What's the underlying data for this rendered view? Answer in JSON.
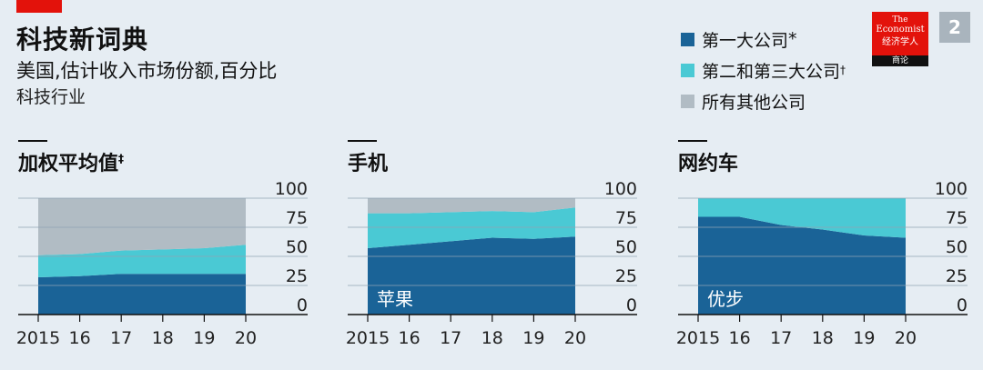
{
  "header": {
    "title": "科技新词典",
    "subtitle": "美国,估计收入市场份额,百分比",
    "subtitle2": "科技行业"
  },
  "legend": [
    {
      "label": "第一大公司",
      "mark": "*",
      "color": "#1a6397"
    },
    {
      "label": "第二和第三大公司",
      "mark": "†",
      "color": "#4ac9d4"
    },
    {
      "label": "所有其他公司",
      "mark": "",
      "color": "#b1bcc4"
    }
  ],
  "logo": {
    "line1": "The",
    "line2": "Economist",
    "line3": "经济学人",
    "line4": "商论"
  },
  "page_number": "2",
  "chart_data": [
    {
      "type": "area",
      "title": "加权平均值",
      "title_mark": "‡",
      "x": [
        2015,
        2016,
        2017,
        2018,
        2019,
        2020
      ],
      "xticklabels": [
        "2015",
        "16",
        "17",
        "18",
        "19",
        "20"
      ],
      "ylim": [
        0,
        100
      ],
      "yticks": [
        "100",
        "75",
        "50",
        "25",
        "0"
      ],
      "series": [
        {
          "values": [
            32,
            33,
            35,
            35,
            35,
            35
          ]
        },
        {
          "values": [
            19,
            19,
            20,
            21,
            22,
            25
          ]
        },
        {
          "values": [
            49,
            48,
            45,
            44,
            43,
            40
          ]
        }
      ],
      "annotation": ""
    },
    {
      "type": "area",
      "title": "手机",
      "title_mark": "",
      "x": [
        2015,
        2016,
        2017,
        2018,
        2019,
        2020
      ],
      "xticklabels": [
        "2015",
        "16",
        "17",
        "18",
        "19",
        "20"
      ],
      "ylim": [
        0,
        100
      ],
      "yticks": [
        "100",
        "75",
        "50",
        "25",
        "0"
      ],
      "series": [
        {
          "values": [
            57,
            60,
            63,
            66,
            65,
            67
          ]
        },
        {
          "values": [
            30,
            27,
            25,
            23,
            23,
            25
          ]
        },
        {
          "values": [
            13,
            13,
            12,
            11,
            12,
            8
          ]
        }
      ],
      "annotation": "苹果"
    },
    {
      "type": "area",
      "title": "网约车",
      "title_mark": "",
      "x": [
        2015,
        2016,
        2017,
        2018,
        2019,
        2020
      ],
      "xticklabels": [
        "2015",
        "16",
        "17",
        "18",
        "19",
        "20"
      ],
      "ylim": [
        0,
        100
      ],
      "yticks": [
        "100",
        "75",
        "50",
        "25",
        "0"
      ],
      "series": [
        {
          "values": [
            84,
            84,
            77,
            73,
            68,
            66
          ]
        },
        {
          "values": [
            16,
            16,
            23,
            27,
            32,
            34
          ]
        },
        {
          "values": [
            0,
            0,
            0,
            0,
            0,
            0
          ]
        }
      ],
      "annotation": "优步"
    }
  ]
}
